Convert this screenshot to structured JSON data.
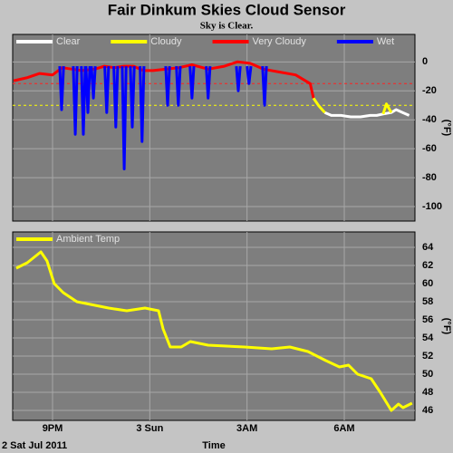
{
  "title": "Fair Dinkum Skies Cloud Sensor",
  "subtitle": "Sky is Clear.",
  "chart_data": [
    {
      "type": "line",
      "ylabel": "(°F)",
      "xlim": [
        19.77,
        32.18
      ],
      "ylim": [
        -110,
        19
      ],
      "yticks": [
        0,
        -20,
        -40,
        -60,
        -80,
        -100
      ],
      "grid": true,
      "thresholds": [
        {
          "value": -15,
          "color": "#ff2020"
        },
        {
          "value": -30,
          "color": "#ffff00"
        }
      ],
      "series": [
        {
          "name": "Clear",
          "color": "#ffffff",
          "x": [
            29.4,
            29.6,
            29.9,
            30.2,
            30.5,
            30.8,
            31.0,
            31.2,
            31.45,
            31.6,
            31.8,
            32.0
          ],
          "values": [
            -35,
            -37,
            -37,
            -38,
            -38,
            -37,
            -37,
            -36,
            -35,
            -33,
            -35,
            -37
          ]
        },
        {
          "name": "Cloudy",
          "color": "#ffff00",
          "x": [
            29.05,
            29.2,
            29.4,
            null,
            31.2,
            31.3,
            31.45
          ],
          "values": [
            -25,
            -30,
            -35,
            null,
            -36,
            -29,
            -35
          ]
        },
        {
          "name": "Very Cloudy",
          "color": "#ff0000",
          "x": [
            19.8,
            20.2,
            20.6,
            21.0,
            21.3,
            21.6,
            21.9,
            22.3,
            22.6,
            22.9,
            23.2,
            23.5,
            23.8,
            24.1,
            24.5,
            24.9,
            25.3,
            25.8,
            26.3,
            26.7,
            27.1,
            27.5,
            28.0,
            28.5,
            28.95,
            29.05
          ],
          "values": [
            -13,
            -11,
            -8,
            -9,
            -4,
            -5,
            -6,
            -5,
            -3,
            -4,
            -3,
            -3,
            -6,
            -6,
            -5,
            -4,
            -2,
            -5,
            -3,
            0,
            -1,
            -5,
            -7,
            -9,
            -15,
            -25
          ]
        },
        {
          "name": "Wet",
          "color": "#0000ff",
          "x": [
            21.22,
            21.28,
            21.34,
            null,
            21.64,
            21.7,
            21.76,
            null,
            21.89,
            21.95,
            22.01,
            null,
            22.03,
            22.09,
            22.15,
            null,
            22.2,
            22.26,
            22.32,
            null,
            22.61,
            22.67,
            22.73,
            null,
            22.89,
            22.95,
            23.01,
            null,
            23.15,
            23.21,
            23.27,
            null,
            23.4,
            23.46,
            23.52,
            null,
            23.7,
            23.76,
            23.82,
            null,
            24.49,
            24.55,
            24.61,
            null,
            24.82,
            24.88,
            24.94,
            null,
            25.24,
            25.3,
            25.36,
            null,
            25.74,
            25.8,
            25.86,
            null,
            26.67,
            26.73,
            26.79,
            null,
            27.0,
            27.06,
            27.12,
            null,
            27.48,
            27.54,
            27.6
          ],
          "values": [
            -3,
            -33,
            -3,
            null,
            -3,
            -50,
            -3,
            null,
            -3,
            -50,
            -3,
            null,
            -3,
            -35,
            -3,
            null,
            -3,
            -25,
            -3,
            null,
            -3,
            -35,
            -3,
            null,
            -3,
            -45,
            -3,
            null,
            -3,
            -74,
            -3,
            null,
            -3,
            -45,
            -3,
            null,
            -3,
            -55,
            -3,
            null,
            -3,
            -30,
            -3,
            null,
            -3,
            -30,
            -3,
            null,
            -3,
            -25,
            -3,
            null,
            -3,
            -25,
            -3,
            null,
            -3,
            -20,
            -3,
            null,
            -3,
            -15,
            -3,
            null,
            -3,
            -30,
            -3
          ]
        }
      ]
    },
    {
      "type": "line",
      "ylabel": "(°F)",
      "xlabel": "Time",
      "date_label": "2 Sat Jul 2011",
      "xlim": [
        19.77,
        32.18
      ],
      "xticks": [
        {
          "value": 21,
          "label": "9PM"
        },
        {
          "value": 24,
          "label": "3 Sun"
        },
        {
          "value": 27,
          "label": "3AM"
        },
        {
          "value": 30,
          "label": "6AM"
        }
      ],
      "ylim": [
        44.9,
        65.7
      ],
      "yticks": [
        46,
        48,
        50,
        52,
        54,
        56,
        58,
        60,
        62,
        64
      ],
      "grid": true,
      "series": [
        {
          "name": "Ambient Temp",
          "color": "#ffff00",
          "x": [
            19.88,
            20.22,
            20.64,
            20.83,
            21.05,
            21.33,
            21.75,
            22.17,
            22.73,
            23.29,
            23.85,
            24.27,
            24.41,
            24.63,
            24.97,
            25.25,
            25.8,
            26.92,
            27.76,
            28.32,
            28.88,
            29.43,
            29.85,
            30.13,
            30.41,
            30.83,
            31.11,
            31.45,
            31.67,
            31.81,
            32.09
          ],
          "values": [
            61.7,
            62.3,
            63.5,
            62.5,
            60,
            59,
            58,
            57.7,
            57.3,
            57,
            57.3,
            57,
            55,
            53,
            53,
            53.6,
            53.2,
            53,
            52.8,
            53,
            52.5,
            51.5,
            50.8,
            51,
            50,
            49.5,
            48,
            46,
            46.7,
            46.3,
            46.8
          ]
        }
      ]
    }
  ]
}
